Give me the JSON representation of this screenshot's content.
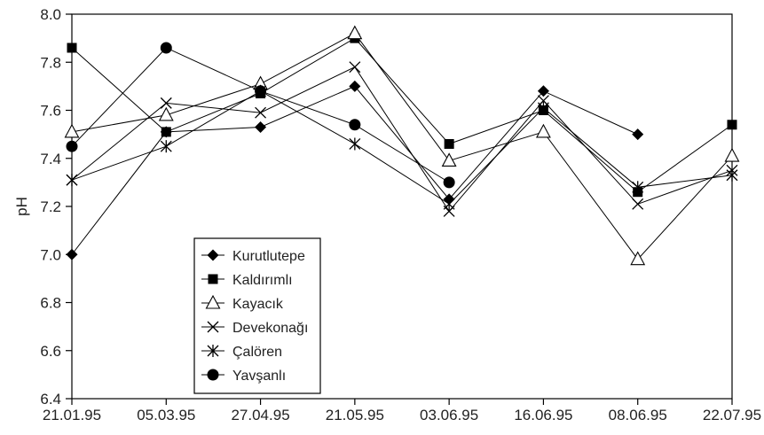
{
  "chart_data": {
    "type": "line",
    "title": "",
    "xlabel": "",
    "ylabel": "pH",
    "categories": [
      "21.01.95",
      "05.03.95",
      "27.04.95",
      "21.05.95",
      "03.06.95",
      "16.06.95",
      "08.06.95",
      "22.07.95"
    ],
    "ylim": [
      6.4,
      8.0
    ],
    "yticks": [
      "6.4",
      "6.6",
      "6.8",
      "7.0",
      "7.2",
      "7.4",
      "7.6",
      "7.8",
      "8.0"
    ],
    "grid": false,
    "legend_position": "bottom-left",
    "series": [
      {
        "name": "Kurutlutepe",
        "marker": "diamond",
        "values": [
          7.0,
          7.51,
          7.53,
          7.7,
          7.23,
          7.68,
          7.5,
          null
        ]
      },
      {
        "name": "Kaldırımlı",
        "marker": "square",
        "values": [
          7.86,
          7.51,
          7.67,
          7.9,
          7.46,
          7.6,
          7.26,
          7.54
        ]
      },
      {
        "name": "Kayacık",
        "marker": "triangle-open",
        "values": [
          7.51,
          7.58,
          7.71,
          7.92,
          7.39,
          7.51,
          6.98,
          7.41
        ]
      },
      {
        "name": "Devekonağı",
        "marker": "x",
        "values": [
          7.31,
          7.63,
          7.59,
          7.78,
          7.18,
          7.64,
          7.21,
          7.35
        ]
      },
      {
        "name": "Çalören",
        "marker": "asterisk",
        "values": [
          7.31,
          7.45,
          7.68,
          7.46,
          7.21,
          7.61,
          7.28,
          7.33
        ]
      },
      {
        "name": "Yavşanlı",
        "marker": "circle",
        "values": [
          7.45,
          7.86,
          7.68,
          7.54,
          7.3,
          null,
          null,
          null
        ]
      }
    ]
  }
}
